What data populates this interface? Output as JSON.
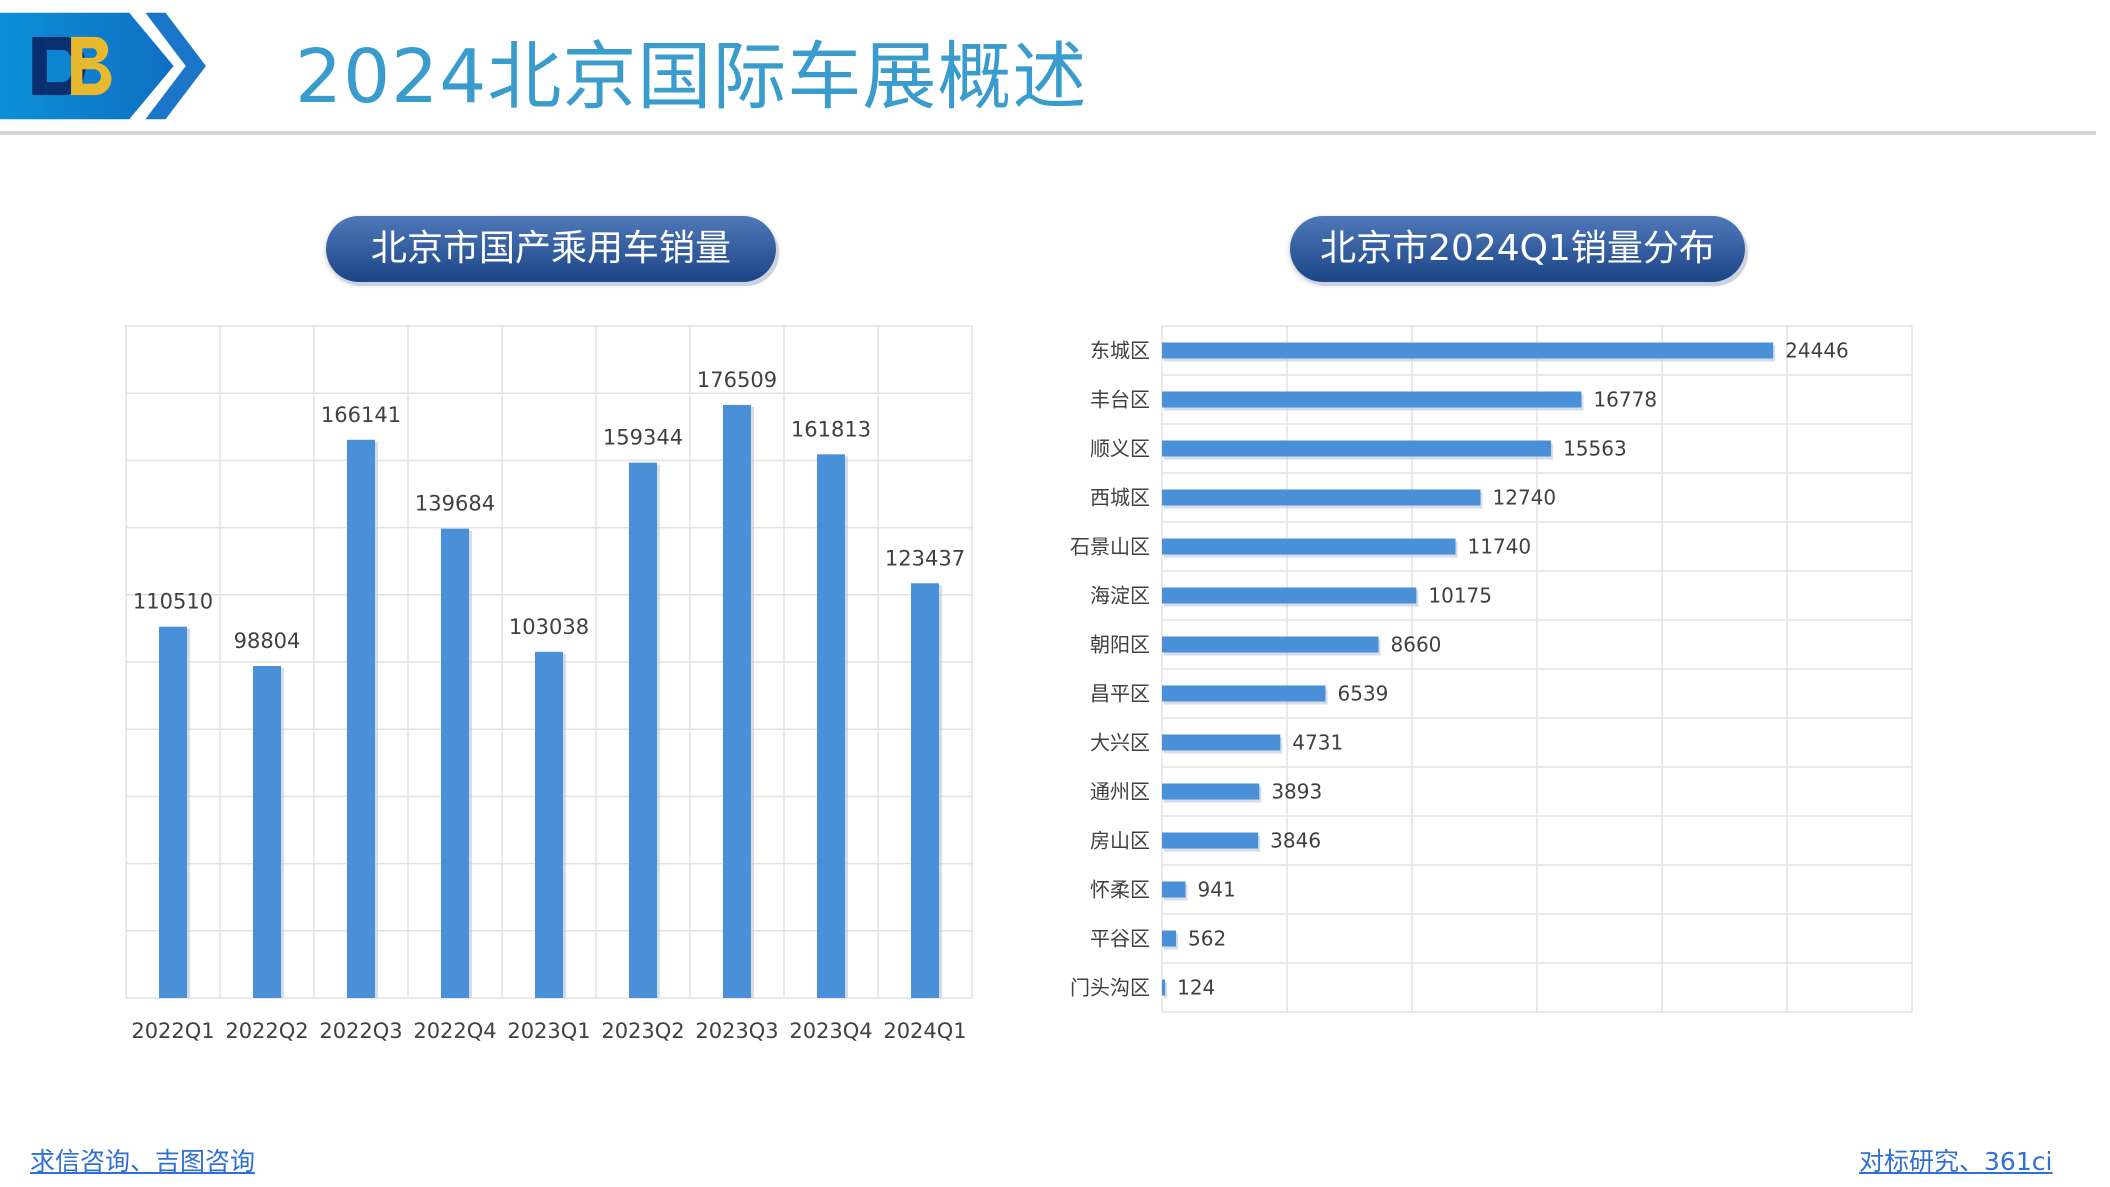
{
  "page_title": "2024北京国际车展概述",
  "logo": {
    "text": "DB"
  },
  "left_panel": {
    "heading": "北京市国产乘用车销量"
  },
  "right_panel": {
    "heading": "北京市2024Q1销量分布"
  },
  "footer": {
    "left_link_a": "求信咨询",
    "separator_left": "、",
    "left_link_b": "吉图咨询",
    "right_link_a": "对标研究",
    "separator_right": "、",
    "right_link_b": "361ci"
  },
  "colors": {
    "title": "#3a9ccd",
    "bar": "#4a90d9",
    "pill_top": "#4f78b9",
    "pill_bottom": "#1c4587",
    "link": "#2f6fd6"
  },
  "chart_data": [
    {
      "type": "bar",
      "orientation": "vertical",
      "title": "北京市国产乘用车销量",
      "categories": [
        "2022Q1",
        "2022Q2",
        "2022Q3",
        "2022Q4",
        "2023Q1",
        "2023Q2",
        "2023Q3",
        "2023Q4",
        "2024Q1"
      ],
      "values": [
        110510,
        98804,
        166141,
        139684,
        103038,
        159344,
        176509,
        161813,
        123437
      ],
      "ylim": [
        0,
        200000
      ],
      "grid": true,
      "data_labels": true
    },
    {
      "type": "bar",
      "orientation": "horizontal",
      "title": "北京市2024Q1销量分布",
      "categories": [
        "东城区",
        "丰台区",
        "顺义区",
        "西城区",
        "石景山区",
        "海淀区",
        "朝阳区",
        "昌平区",
        "大兴区",
        "通州区",
        "房山区",
        "怀柔区",
        "平谷区",
        "门头沟区"
      ],
      "values": [
        24446,
        16778,
        15563,
        12740,
        11740,
        10175,
        8660,
        6539,
        4731,
        3893,
        3846,
        941,
        562,
        124
      ],
      "xlim": [
        0,
        30000
      ],
      "grid": true,
      "data_labels": true
    }
  ]
}
